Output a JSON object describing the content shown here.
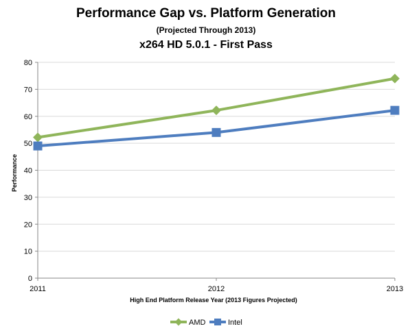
{
  "chart_data": {
    "type": "line",
    "title": "Performance Gap vs. Platform Generation",
    "subtitle": "(Projected Through 2013)",
    "title2": "x264 HD 5.0.1 - First Pass",
    "xlabel": "High End Platform Release Year (2013 Figures Projected)",
    "ylabel": "Performance",
    "categories": [
      "2011",
      "2012",
      "2013"
    ],
    "ylim": [
      0,
      80
    ],
    "yticks": [
      0,
      10,
      20,
      30,
      40,
      50,
      60,
      70,
      80
    ],
    "grid": true,
    "legend_position": "bottom",
    "series": [
      {
        "name": "AMD",
        "values": [
          52.2,
          62.2,
          74.0
        ],
        "color": "#8fb55a",
        "marker": "diamond"
      },
      {
        "name": "Intel",
        "values": [
          49.0,
          54.0,
          62.2
        ],
        "color": "#4e7dbf",
        "marker": "square"
      }
    ]
  }
}
